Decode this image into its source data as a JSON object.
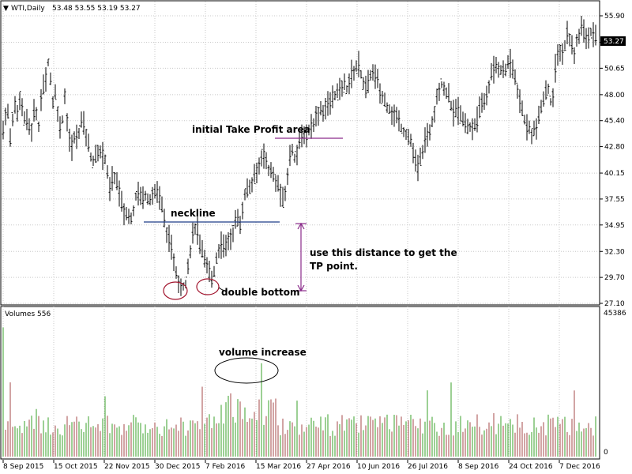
{
  "chart_data": [
    {
      "type": "candlestick",
      "symbol": "WTI,Daily",
      "ohlc_label": "53.48 53.55 53.19 53.27",
      "last_price_label": "53.27",
      "y_ticks": [
        "55.90",
        "53.25",
        "50.65",
        "48.00",
        "45.40",
        "42.80",
        "40.15",
        "37.55",
        "34.95",
        "32.30",
        "29.70",
        "27.10"
      ],
      "ylim": [
        27.1,
        55.9
      ],
      "x_labels": [
        "8 Sep 2015",
        "15 Oct 2015",
        "22 Nov 2015",
        "30 Dec 2015",
        "7 Feb 2016",
        "15 Mar 2016",
        "27 Apr 2016",
        "10 Jun 2016",
        "26 Jul 2016",
        "8 Sep 2016",
        "24 Oct 2016",
        "7 Dec 2016"
      ],
      "price_path": [
        [
          0,
          44.5
        ],
        [
          5,
          47.5
        ],
        [
          8,
          43.0
        ],
        [
          14,
          47.0
        ],
        [
          18,
          46.0
        ],
        [
          20,
          48.3
        ],
        [
          23,
          47.0
        ],
        [
          27,
          45.5
        ],
        [
          31,
          45.0
        ],
        [
          36,
          44.5
        ],
        [
          40,
          47.0
        ],
        [
          45,
          45.0
        ],
        [
          50,
          49.5
        ],
        [
          52,
          47.8
        ],
        [
          56,
          51.5
        ],
        [
          59,
          50.5
        ],
        [
          62,
          47.0
        ],
        [
          66,
          48.0
        ],
        [
          70,
          46.0
        ],
        [
          73,
          44.0
        ],
        [
          78,
          47.8
        ],
        [
          82,
          45.0
        ],
        [
          86,
          42.5
        ],
        [
          90,
          43.5
        ],
        [
          95,
          44.0
        ],
        [
          100,
          45.5
        ],
        [
          105,
          44.0
        ],
        [
          110,
          42.0
        ],
        [
          115,
          41.0
        ],
        [
          120,
          42.5
        ],
        [
          125,
          42.0
        ],
        [
          130,
          41.5
        ],
        [
          135,
          38.5
        ],
        [
          140,
          40.0
        ],
        [
          145,
          39.0
        ],
        [
          150,
          37.0
        ],
        [
          155,
          36.0
        ],
        [
          160,
          35.5
        ],
        [
          165,
          36.5
        ],
        [
          170,
          38.5
        ],
        [
          175,
          37.5
        ],
        [
          180,
          38.0
        ],
        [
          185,
          37.5
        ],
        [
          190,
          38.0
        ],
        [
          195,
          38.5
        ],
        [
          200,
          37.0
        ],
        [
          205,
          35.0
        ],
        [
          210,
          33.5
        ],
        [
          215,
          32.0
        ],
        [
          220,
          30.0
        ],
        [
          225,
          29.0
        ],
        [
          230,
          28.5
        ],
        [
          234,
          31.0
        ],
        [
          238,
          33.0
        ],
        [
          242,
          34.5
        ],
        [
          245,
          35.0
        ],
        [
          248,
          33.0
        ],
        [
          252,
          32.0
        ],
        [
          256,
          31.0
        ],
        [
          260,
          30.5
        ],
        [
          264,
          29.5
        ],
        [
          268,
          30.5
        ],
        [
          272,
          32.5
        ],
        [
          276,
          33.0
        ],
        [
          280,
          32.5
        ],
        [
          285,
          33.5
        ],
        [
          290,
          34.0
        ],
        [
          295,
          35.5
        ],
        [
          300,
          35.0
        ],
        [
          305,
          38.0
        ],
        [
          310,
          38.5
        ],
        [
          315,
          39.0
        ],
        [
          320,
          40.0
        ],
        [
          325,
          41.0
        ],
        [
          328,
          42.5
        ],
        [
          332,
          41.5
        ],
        [
          336,
          40.5
        ],
        [
          340,
          40.0
        ],
        [
          345,
          39.5
        ],
        [
          350,
          38.5
        ],
        [
          355,
          37.0
        ],
        [
          358,
          38.5
        ],
        [
          362,
          41.5
        ],
        [
          366,
          42.5
        ],
        [
          370,
          41.5
        ],
        [
          375,
          43.0
        ],
        [
          380,
          44.5
        ],
        [
          385,
          44.0
        ],
        [
          390,
          45.0
        ],
        [
          395,
          45.5
        ],
        [
          400,
          46.5
        ],
        [
          405,
          46.5
        ],
        [
          410,
          47.0
        ],
        [
          415,
          47.5
        ],
        [
          420,
          48.0
        ],
        [
          425,
          48.0
        ],
        [
          430,
          49.0
        ],
        [
          435,
          48.5
        ],
        [
          440,
          50.0
        ],
        [
          445,
          50.5
        ],
        [
          450,
          51.0
        ],
        [
          453,
          50.0
        ],
        [
          458,
          48.5
        ],
        [
          462,
          49.0
        ],
        [
          465,
          50.0
        ],
        [
          470,
          50.0
        ],
        [
          475,
          49.0
        ],
        [
          480,
          47.5
        ],
        [
          485,
          47.0
        ],
        [
          490,
          46.5
        ],
        [
          495,
          46.0
        ],
        [
          500,
          45.5
        ],
        [
          505,
          44.5
        ],
        [
          510,
          44.0
        ],
        [
          515,
          43.5
        ],
        [
          520,
          42.0
        ],
        [
          524,
          40.5
        ],
        [
          528,
          41.5
        ],
        [
          532,
          43.0
        ],
        [
          536,
          43.5
        ],
        [
          540,
          44.5
        ],
        [
          545,
          46.0
        ],
        [
          550,
          48.5
        ],
        [
          555,
          49.0
        ],
        [
          560,
          48.5
        ],
        [
          565,
          47.5
        ],
        [
          570,
          46.0
        ],
        [
          575,
          46.5
        ],
        [
          580,
          45.5
        ],
        [
          585,
          45.0
        ],
        [
          590,
          44.5
        ],
        [
          595,
          45.0
        ],
        [
          600,
          45.5
        ],
        [
          605,
          47.0
        ],
        [
          610,
          47.5
        ],
        [
          615,
          49.0
        ],
        [
          620,
          50.5
        ],
        [
          625,
          51.0
        ],
        [
          630,
          50.5
        ],
        [
          635,
          50.0
        ],
        [
          640,
          51.5
        ],
        [
          645,
          50.5
        ],
        [
          650,
          49.0
        ],
        [
          655,
          47.0
        ],
        [
          660,
          45.5
        ],
        [
          665,
          44.5
        ],
        [
          670,
          44.0
        ],
        [
          673,
          44.5
        ],
        [
          677,
          45.0
        ],
        [
          682,
          47.0
        ],
        [
          685,
          48.0
        ],
        [
          690,
          48.5
        ],
        [
          695,
          46.5
        ],
        [
          697,
          49.0
        ],
        [
          700,
          51.5
        ],
        [
          705,
          52.5
        ],
        [
          710,
          52.0
        ],
        [
          713,
          54.5
        ],
        [
          718,
          53.5
        ],
        [
          722,
          52.0
        ],
        [
          727,
          53.5
        ],
        [
          732,
          55.0
        ],
        [
          736,
          54.0
        ],
        [
          741,
          53.5
        ],
        [
          745,
          54.5
        ],
        [
          750,
          53.5
        ],
        [
          755,
          53.27
        ]
      ],
      "volume_label": "Volumes 556",
      "volume_ticks": [
        "45386",
        "0"
      ],
      "volume_ylim": [
        0,
        45386
      ]
    }
  ],
  "annotations": {
    "take_profit": "initial Take Profit area",
    "neckline": "neckline",
    "distance": "use this distance to get the",
    "distance2": "TP point.",
    "double_bottom": "double bottom",
    "volume_increase": "volume increase"
  },
  "colors": {
    "neckline": "#1f3c88",
    "annotation": "#8a2b8a",
    "ellipse_red": "#a1132c",
    "vol_up": "#3aa02a",
    "vol_down": "#a54a4a",
    "candle": "#000000",
    "last_price_bg": "#000000"
  }
}
